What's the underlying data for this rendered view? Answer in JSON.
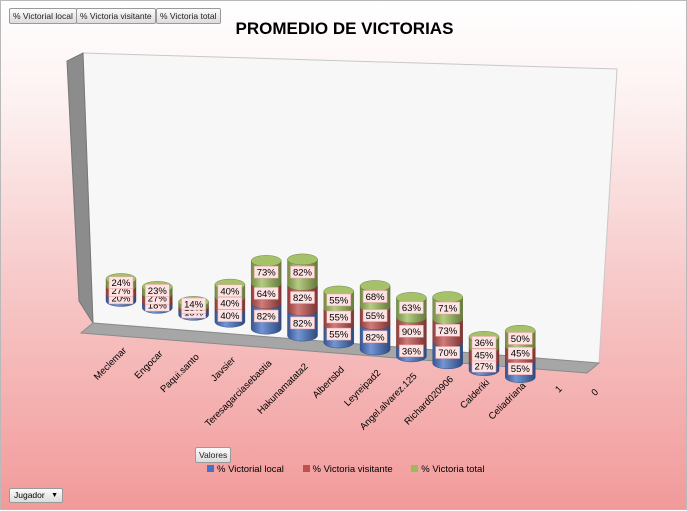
{
  "filters": [
    {
      "label": "% Victorial local"
    },
    {
      "label": "% Victoria visitante"
    },
    {
      "label": "% Victoria total"
    }
  ],
  "valores_label": "Valores",
  "jugador_label": "Jugador",
  "colors": {
    "local": "#4472c4",
    "visitante": "#c0504d",
    "total": "#9bbb59"
  },
  "chart_data": {
    "type": "bar",
    "stacked": true,
    "three_d": true,
    "title": "PROMEDIO DE VICTORIAS",
    "categories": [
      "Meclemar",
      "Engocar",
      "Paqui.santo",
      "Javsier",
      "Teresagarciasebastia",
      "Hakunamatata2",
      "Albertsbd",
      "Leyreipad2",
      "Angel.alvarez.125",
      "Richard020906",
      "Calderiki",
      "Celiadriana",
      "1",
      "0"
    ],
    "series": [
      {
        "name": "% Victorial local",
        "values": [
          20,
          18,
          18,
          40,
          82,
          82,
          55,
          82,
          36,
          70,
          27,
          55,
          null,
          null
        ],
        "labels": [
          "20%",
          "18%",
          "18%",
          "40%",
          "82%",
          "82%",
          "55%",
          "82%",
          "36%",
          "70%",
          "27%",
          "55%",
          "",
          ""
        ]
      },
      {
        "name": "% Victoria visitante",
        "values": [
          27,
          27,
          10,
          40,
          64,
          82,
          55,
          55,
          90,
          73,
          45,
          45,
          null,
          null
        ],
        "labels": [
          "27%",
          "27%",
          "10%",
          "40%",
          "64%",
          "82%",
          "55%",
          "55%",
          "90%",
          "73%",
          "45%",
          "45%",
          "",
          ""
        ]
      },
      {
        "name": "% Victoria total",
        "values": [
          24,
          23,
          14,
          40,
          73,
          82,
          55,
          68,
          63,
          71,
          36,
          50,
          null,
          null
        ],
        "labels": [
          "24%",
          "23%",
          "14%",
          "40%",
          "73%",
          "82%",
          "55%",
          "68%",
          "63%",
          "71%",
          "36%",
          "50%",
          "",
          ""
        ]
      }
    ],
    "legend_position": "bottom",
    "grid": false
  }
}
